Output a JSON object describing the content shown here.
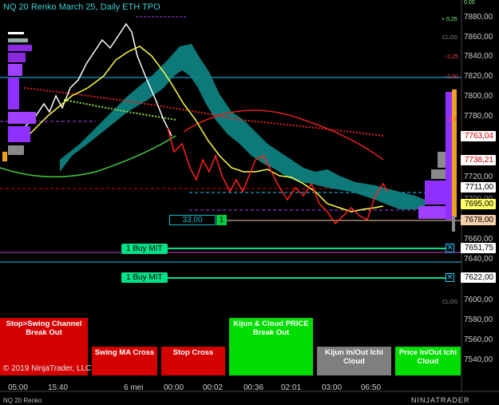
{
  "title": "NQ 20 Renko March 25, Daily ETH TPO",
  "instrument": "NQ 20 Renko",
  "copyright": "© 2019 NinjaTrader, LLC",
  "brand": "NINJATRADER",
  "axis_prices": [
    "7880,00",
    "7860,00",
    "7840,00",
    "7820,00",
    "7800,00",
    "7780,00",
    "7720,00",
    "7700,00",
    "7660,00",
    "7640,00",
    "7600,00",
    "7580,00",
    "7560,00",
    "7540,00"
  ],
  "axis_small": [
    "0,00",
    "+ 0,25",
    "CLOS",
    "- 0,25",
    "- 0,50",
    "- 1,0",
    "CLOS"
  ],
  "price_boxes": [
    {
      "value": "7763,04",
      "bg": "#ffffff",
      "fg": "#d00000"
    },
    {
      "value": "7738,21",
      "bg": "#ffffff",
      "fg": "#d00000"
    },
    {
      "value": "7711,00",
      "bg": "#ffffff",
      "fg": "#000000"
    },
    {
      "value": "7695,00",
      "bg": "#ffff66",
      "fg": "#000000"
    },
    {
      "value": "7678,00",
      "bg": "#f5d0a9",
      "fg": "#000000"
    },
    {
      "value": "7651,75",
      "bg": "#ffffff",
      "fg": "#000000"
    },
    {
      "value": "7622,00",
      "bg": "#ffffff",
      "fg": "#000000"
    }
  ],
  "x_labels": [
    "05:00",
    "15:40",
    "6 mei",
    "00:00",
    "00:02",
    "00:36",
    "02:01",
    "03:00",
    "06:50"
  ],
  "orders": [
    {
      "label": "1 Buy MIT",
      "price": "7651,75"
    },
    {
      "label": "1 Buy MIT",
      "price": "7622,00"
    }
  ],
  "quantity": {
    "value": "33,00",
    "button": "1"
  },
  "signals": [
    {
      "label": "Stop>Swing Channel Break Out",
      "color": "#d40000"
    },
    {
      "label": "Swing MA Cross",
      "color": "#d40000"
    },
    {
      "label": "Stop Cross",
      "color": "#d40000"
    },
    {
      "label": "Kijun & Cloud PRICE Break Out",
      "color": "#00dd00"
    },
    {
      "label": "Kijun In/Out Ichi Cloud",
      "color": "#7f7f7f"
    },
    {
      "label": "Price In/Out Ichi Cloud",
      "color": "#00dd00"
    }
  ],
  "colors": {
    "cloud": "#0f7f80",
    "price": "#ff2020",
    "tenkan": "#ffffff",
    "kijun": "#ffff40"
  }
}
